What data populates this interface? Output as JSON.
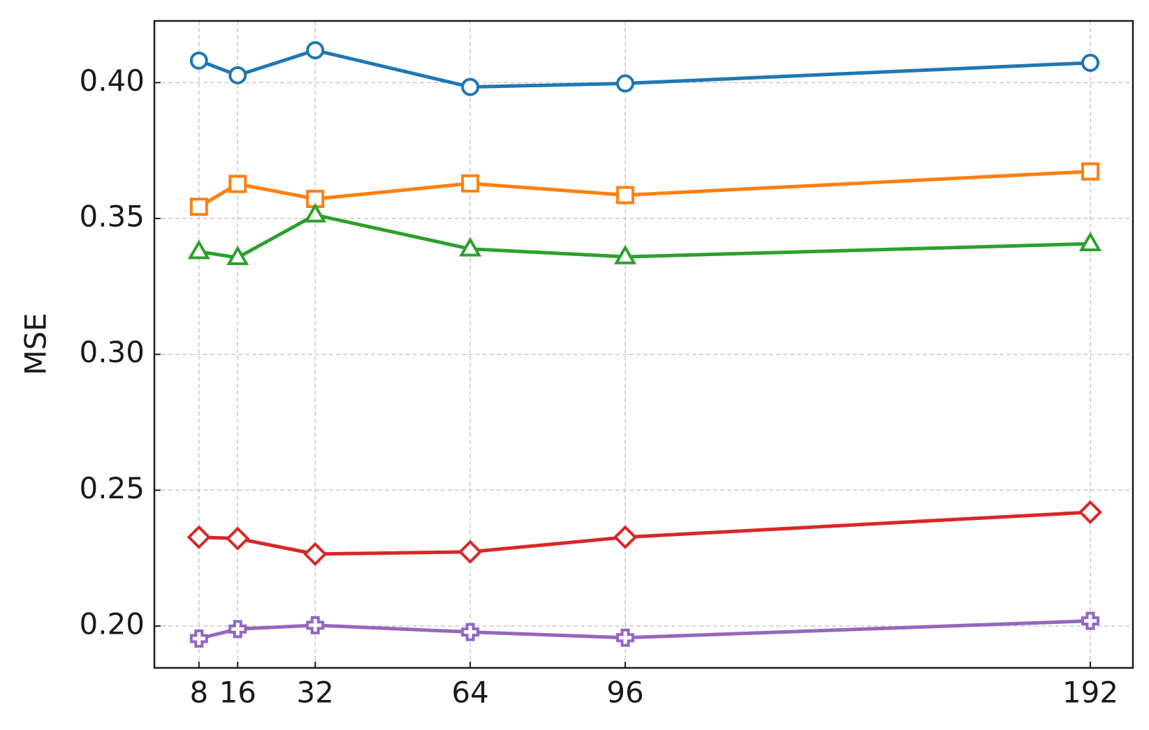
{
  "chart_data": {
    "type": "line",
    "y_label": "MSE",
    "x": [
      8,
      16,
      32,
      64,
      96,
      192
    ],
    "series": [
      {
        "color": "#1f77b4",
        "marker": "circle",
        "values": [
          0.4081,
          0.4027,
          0.4119,
          0.3984,
          0.3997,
          0.4073
        ]
      },
      {
        "color": "#ff7f0e",
        "marker": "square",
        "values": [
          0.3543,
          0.3627,
          0.3572,
          0.3629,
          0.3586,
          0.3673
        ]
      },
      {
        "color": "#2ca02c",
        "marker": "triangle",
        "values": [
          0.3378,
          0.3356,
          0.3513,
          0.3388,
          0.3359,
          0.3407
        ]
      },
      {
        "color": "#d62728",
        "marker": "diamond",
        "values": [
          0.2327,
          0.2322,
          0.2265,
          0.2273,
          0.2327,
          0.2419
        ]
      },
      {
        "color": "#9467bd",
        "marker": "plus",
        "values": [
          0.1954,
          0.1989,
          0.2003,
          0.1978,
          0.1957,
          0.2019
        ]
      }
    ],
    "xlim": [
      -1.2,
      200.8
    ],
    "ylim": [
      0.1846,
      0.4227
    ],
    "xticks": [
      8,
      16,
      32,
      64,
      96,
      192
    ],
    "yticks": [
      {
        "value": 0.2,
        "label": "0.20"
      },
      0.25,
      {
        "value": 0.3,
        "label": "0.30"
      },
      0.35,
      {
        "value": 0.4,
        "label": "0.40"
      }
    ],
    "grid": true
  }
}
